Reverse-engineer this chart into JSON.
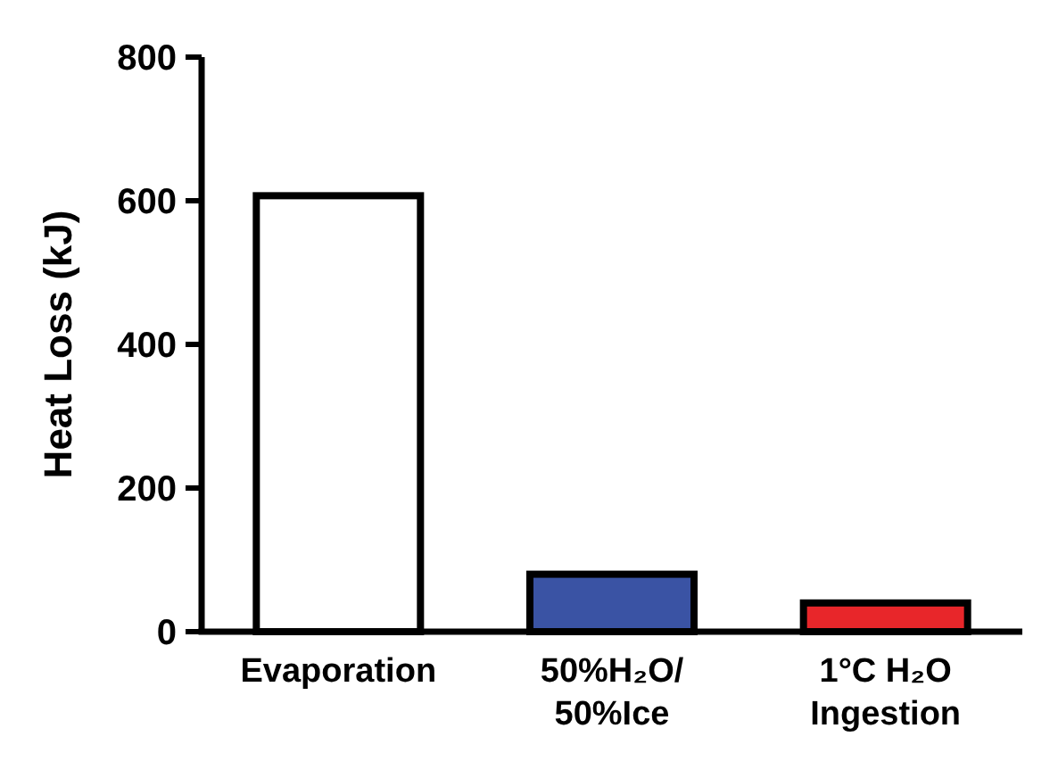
{
  "chart_data": {
    "type": "bar",
    "ylabel": "Heat Loss (kJ)",
    "categories": [
      "Evaporation",
      "50%H₂O/\n50%Ice",
      "1°C H₂O\nIngestion"
    ],
    "values": [
      607,
      80,
      40
    ],
    "colors": [
      "#ffffff",
      "#3a53a4",
      "#e8262a"
    ],
    "ylim": [
      0,
      800
    ],
    "yticks": [
      0,
      200,
      400,
      600,
      800
    ],
    "grid": false
  }
}
